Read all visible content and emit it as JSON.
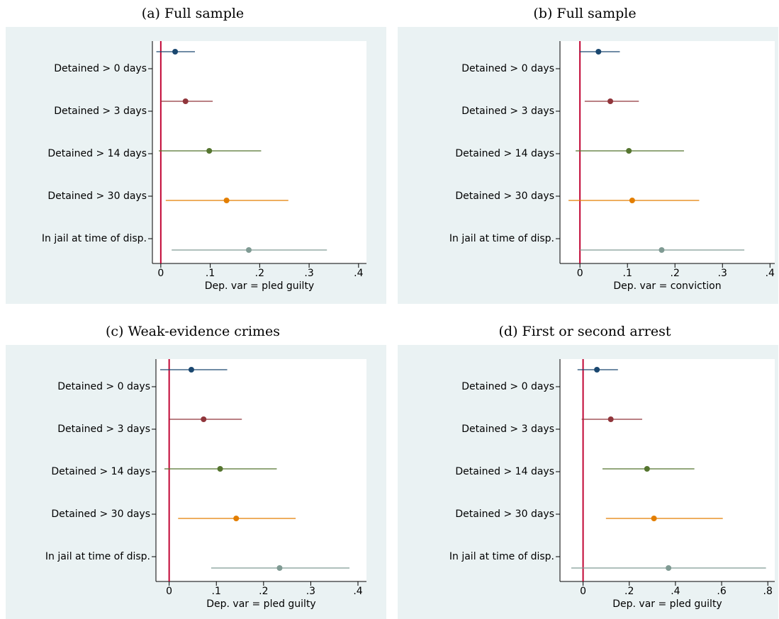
{
  "chart_data": [
    {
      "type": "errorbar",
      "title": "(a) Full sample",
      "xlabel": "Dep. var = pled guilty",
      "categories": [
        "Detained > 0 days",
        "Detained > 3 days",
        "Detained > 14 days",
        "Detained > 30 days",
        "In jail at time of disp."
      ],
      "values": [
        0.029,
        0.05,
        0.098,
        0.133,
        0.178
      ],
      "lower": [
        -0.009,
        0.0,
        -0.004,
        0.01,
        0.022
      ],
      "upper": [
        0.069,
        0.105,
        0.203,
        0.258,
        0.336
      ],
      "colors": [
        "#1a476f",
        "#90353b",
        "#55752f",
        "#e37e00",
        "#7f9a93"
      ],
      "xlim": [
        -0.017,
        0.416
      ],
      "xticks": [
        0,
        {
          "value": 0.1,
          "label": ".1"
        },
        {
          "value": 0.2,
          "label": ".2"
        },
        {
          "value": 0.3,
          "label": ".3"
        },
        {
          "value": 0.4,
          "label": ".4"
        }
      ],
      "ref_line": 0,
      "ref_color": "#c10534"
    },
    {
      "type": "errorbar",
      "title": "(b) Full sample",
      "xlabel": "Dep. var = conviction",
      "categories": [
        "Detained > 0 days",
        "Detained > 3 days",
        "Detained > 14 days",
        "Detained > 30 days",
        "In jail at time of disp."
      ],
      "values": [
        0.039,
        0.064,
        0.103,
        0.11,
        0.172
      ],
      "lower": [
        -0.001,
        0.01,
        -0.009,
        -0.024,
        0.0
      ],
      "upper": [
        0.084,
        0.124,
        0.219,
        0.251,
        0.346
      ],
      "colors": [
        "#1a476f",
        "#90353b",
        "#55752f",
        "#e37e00",
        "#7f9a93"
      ],
      "xlim": [
        -0.042,
        0.41
      ],
      "xticks": [
        0,
        {
          "value": 0.1,
          "label": ".1"
        },
        {
          "value": 0.2,
          "label": ".2"
        },
        {
          "value": 0.3,
          "label": ".3"
        },
        {
          "value": 0.4,
          "label": ".4"
        }
      ],
      "ref_line": 0,
      "ref_color": "#c10534"
    },
    {
      "type": "errorbar",
      "title": "(c) Weak-evidence crimes",
      "xlabel": "Dep. var = pled guilty",
      "categories": [
        "Detained > 0 days",
        "Detained > 3 days",
        "Detained > 14 days",
        "Detained > 30 days",
        "In jail at time of disp."
      ],
      "values": [
        0.047,
        0.073,
        0.108,
        0.142,
        0.234
      ],
      "lower": [
        -0.019,
        0.0,
        -0.01,
        0.019,
        0.089
      ],
      "upper": [
        0.123,
        0.154,
        0.228,
        0.268,
        0.382
      ],
      "colors": [
        "#1a476f",
        "#90353b",
        "#55752f",
        "#e37e00",
        "#7f9a93"
      ],
      "xlim": [
        -0.028,
        0.418
      ],
      "xticks": [
        0,
        {
          "value": 0.1,
          "label": ".1"
        },
        {
          "value": 0.2,
          "label": ".2"
        },
        {
          "value": 0.3,
          "label": ".3"
        },
        {
          "value": 0.4,
          "label": ".4"
        }
      ],
      "ref_line": 0,
      "ref_color": "#c10534"
    },
    {
      "type": "errorbar",
      "title": "(d) First or second arrest",
      "xlabel": "Dep. var = pled guilty",
      "categories": [
        "Detained > 0 days",
        "Detained > 3 days",
        "Detained > 14 days",
        "Detained > 30 days",
        "In jail at time of disp."
      ],
      "values": [
        0.06,
        0.12,
        0.277,
        0.307,
        0.37
      ],
      "lower": [
        -0.024,
        -0.006,
        0.084,
        0.099,
        -0.051
      ],
      "upper": [
        0.151,
        0.256,
        0.482,
        0.605,
        0.792
      ],
      "colors": [
        "#1a476f",
        "#90353b",
        "#55752f",
        "#e37e00",
        "#7f9a93"
      ],
      "xlim": [
        -0.1,
        0.83
      ],
      "xticks": [
        0,
        {
          "value": 0.2,
          "label": ".2"
        },
        {
          "value": 0.4,
          "label": ".4"
        },
        {
          "value": 0.6,
          "label": ".6"
        },
        {
          "value": 0.8,
          "label": ".8"
        }
      ],
      "ref_line": 0,
      "ref_color": "#c10534"
    }
  ]
}
